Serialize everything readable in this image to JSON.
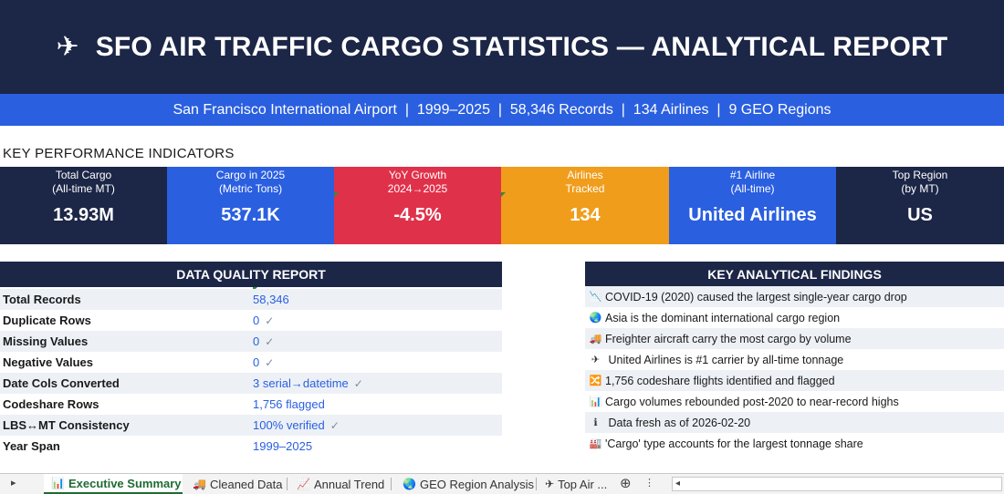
{
  "header": {
    "plane_icon": "airplane-icon",
    "title": "SFO AIR TRAFFIC CARGO STATISTICS — ANALYTICAL REPORT",
    "subtitle": "San Francisco International Airport  |  1999–2025  |  58,346 Records  |  134 Airlines  |  9 GEO Regions"
  },
  "kpi_section": {
    "heading": "KEY PERFORMANCE INDICATORS",
    "cards": [
      {
        "label_1": "Total Cargo",
        "label_2": "(All-time MT)",
        "value": "13.93M",
        "color": "#1c2647"
      },
      {
        "label_1": "Cargo in 2025",
        "label_2": "(Metric Tons)",
        "value": "537.1K",
        "color": "#2a5fe0"
      },
      {
        "label_1": "YoY Growth",
        "label_2": "2024→2025",
        "value": "-4.5%",
        "color": "#e0314a"
      },
      {
        "label_1": "Airlines",
        "label_2": "Tracked",
        "value": "134",
        "color": "#ef9d1b"
      },
      {
        "label_1": "#1 Airline",
        "label_2": "(All-time)",
        "value": "United Airlines",
        "color": "#2a5fe0"
      },
      {
        "label_1": "Top Region",
        "label_2": "(by MT)",
        "value": "US",
        "color": "#1c2647"
      }
    ]
  },
  "data_quality": {
    "title": "DATA QUALITY REPORT",
    "rows": [
      {
        "key": "Total Records",
        "value": "58,346",
        "check": ""
      },
      {
        "key": "Duplicate Rows",
        "value": "0",
        "check": "✓"
      },
      {
        "key": "Missing Values",
        "value": "0",
        "check": "✓"
      },
      {
        "key": "Negative Values",
        "value": "0",
        "check": "✓"
      },
      {
        "key": "Date Cols Converted",
        "value": "3 serial→datetime",
        "check": "✓"
      },
      {
        "key": "Codeshare Rows",
        "value": "1,756 flagged",
        "check": ""
      },
      {
        "key": "LBS↔MT Consistency",
        "value": "100% verified",
        "check": "✓"
      },
      {
        "key": "Year Span",
        "value": "1999–2025",
        "check": ""
      }
    ]
  },
  "findings": {
    "title": "KEY ANALYTICAL FINDINGS",
    "items": [
      {
        "icon": "chart-down-icon",
        "glyph": "📉",
        "text": "COVID-19 (2020) caused the largest single-year cargo drop"
      },
      {
        "icon": "globe-icon",
        "glyph": "🌏",
        "text": "Asia is the dominant international cargo region"
      },
      {
        "icon": "truck-icon",
        "glyph": "🚚",
        "text": "Freighter aircraft carry the most cargo by volume"
      },
      {
        "icon": "airplane-icon",
        "glyph": "✈",
        "text": " United Airlines is #1 carrier by all-time tonnage"
      },
      {
        "icon": "shuffle-icon",
        "glyph": "🔀",
        "text": "1,756 codeshare flights identified and flagged"
      },
      {
        "icon": "bar-chart-icon",
        "glyph": "📊",
        "text": "Cargo volumes rebounded post-2020 to near-record highs"
      },
      {
        "icon": "info-icon",
        "glyph": "ℹ",
        "text": " Data fresh as of 2026-02-20"
      },
      {
        "icon": "factory-icon",
        "glyph": "🏭",
        "text": "'Cargo' type accounts for the largest tonnage share"
      }
    ]
  },
  "tabs": {
    "items": [
      {
        "label": "Executive Summary",
        "glyph": "📊",
        "icon": "bar-chart-icon",
        "active": true
      },
      {
        "label": "Cleaned Data",
        "glyph": "🚚",
        "icon": "truck-icon",
        "active": false
      },
      {
        "label": "Annual Trend",
        "glyph": "📈",
        "icon": "line-chart-icon",
        "active": false
      },
      {
        "label": "GEO Region Analysis",
        "glyph": "🌏",
        "icon": "globe-icon",
        "active": false
      },
      {
        "label": "Top Air ...",
        "glyph": "✈",
        "icon": "airplane-icon",
        "active": false
      }
    ],
    "add_glyph": "⊕",
    "more_glyph": "⋮",
    "nav_right": "▸",
    "nav_left": "◂"
  }
}
